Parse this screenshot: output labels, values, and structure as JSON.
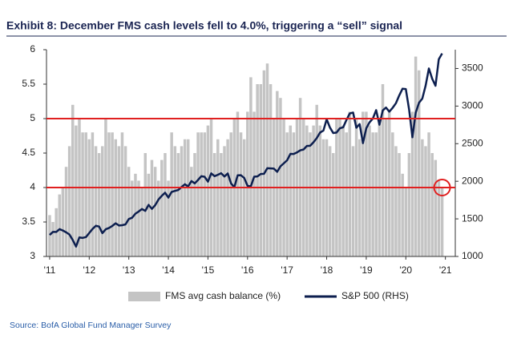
{
  "chart_data": {
    "type": "bar_line",
    "title": "Exhibit 8: December FMS cash levels fell to 4.0%, triggering a “sell” signal",
    "source": "Source: BofA Global Fund Manager Survey",
    "x": [
      2011,
      2011.083,
      2011.167,
      2011.25,
      2011.333,
      2011.417,
      2011.5,
      2011.583,
      2011.667,
      2011.75,
      2011.833,
      2011.917,
      2012,
      2012.083,
      2012.167,
      2012.25,
      2012.333,
      2012.417,
      2012.5,
      2012.583,
      2012.667,
      2012.75,
      2012.833,
      2012.917,
      2013,
      2013.083,
      2013.167,
      2013.25,
      2013.333,
      2013.417,
      2013.5,
      2013.583,
      2013.667,
      2013.75,
      2013.833,
      2013.917,
      2014,
      2014.083,
      2014.167,
      2014.25,
      2014.333,
      2014.417,
      2014.5,
      2014.583,
      2014.667,
      2014.75,
      2014.833,
      2014.917,
      2015,
      2015.083,
      2015.167,
      2015.25,
      2015.333,
      2015.417,
      2015.5,
      2015.583,
      2015.667,
      2015.75,
      2015.833,
      2015.917,
      2016,
      2016.083,
      2016.167,
      2016.25,
      2016.333,
      2016.417,
      2016.5,
      2016.583,
      2016.667,
      2016.75,
      2016.833,
      2016.917,
      2017,
      2017.083,
      2017.167,
      2017.25,
      2017.333,
      2017.417,
      2017.5,
      2017.583,
      2017.667,
      2017.75,
      2017.833,
      2017.917,
      2018,
      2018.083,
      2018.167,
      2018.25,
      2018.333,
      2018.417,
      2018.5,
      2018.583,
      2018.667,
      2018.75,
      2018.833,
      2018.917,
      2019,
      2019.083,
      2019.167,
      2019.25,
      2019.333,
      2019.417,
      2019.5,
      2019.583,
      2019.667,
      2019.75,
      2019.833,
      2019.917,
      2020,
      2020.083,
      2020.167,
      2020.25,
      2020.333,
      2020.417,
      2020.5,
      2020.583,
      2020.667,
      2020.75,
      2020.833,
      2020.917
    ],
    "series": [
      {
        "name": "FMS avg cash balance (%)",
        "type": "bar",
        "color": "#c4c4c4",
        "values": [
          3.6,
          3.5,
          3.7,
          3.9,
          4.0,
          4.3,
          4.6,
          5.2,
          4.9,
          5.0,
          4.8,
          4.8,
          4.7,
          4.8,
          4.6,
          4.5,
          4.6,
          5.0,
          4.8,
          4.8,
          4.7,
          4.6,
          4.8,
          4.6,
          4.3,
          4.1,
          4.2,
          4.1,
          4.0,
          4.5,
          4.2,
          4.4,
          4.3,
          4.1,
          4.4,
          4.5,
          4.1,
          4.8,
          4.6,
          4.5,
          4.6,
          4.7,
          4.7,
          4.3,
          4.5,
          4.8,
          4.8,
          4.8,
          4.9,
          5.0,
          4.5,
          4.7,
          4.5,
          4.6,
          4.7,
          4.8,
          5.0,
          5.1,
          4.8,
          4.7,
          5.1,
          5.6,
          5.1,
          5.5,
          5.5,
          5.7,
          5.8,
          5.5,
          5.0,
          5.4,
          5.3,
          5.0,
          4.8,
          4.9,
          4.8,
          5.0,
          5.3,
          5.0,
          4.9,
          4.8,
          4.9,
          5.2,
          4.9,
          4.7,
          4.7,
          4.6,
          4.5,
          5.0,
          5.0,
          4.9,
          4.8,
          5.1,
          4.6,
          5.0,
          4.7,
          5.1,
          5.1,
          4.9,
          4.8,
          4.8,
          5.0,
          5.5,
          5.0,
          5.1,
          4.8,
          4.6,
          4.5,
          4.2,
          4.0,
          4.5,
          5.1,
          5.9,
          5.7,
          4.7,
          4.6,
          4.8,
          4.5,
          4.4,
          4.1,
          4.0
        ]
      },
      {
        "name": "S&P 500 (RHS)",
        "type": "line",
        "axis": "y2",
        "color": "#0d1f4f",
        "values": [
          1286,
          1327,
          1326,
          1363,
          1345,
          1321,
          1292,
          1219,
          1131,
          1253,
          1247,
          1258,
          1312,
          1366,
          1408,
          1398,
          1310,
          1362,
          1379,
          1406,
          1441,
          1412,
          1416,
          1426,
          1498,
          1515,
          1569,
          1598,
          1631,
          1606,
          1686,
          1633,
          1682,
          1757,
          1806,
          1848,
          1783,
          1859,
          1872,
          1884,
          1924,
          1960,
          1931,
          2003,
          1972,
          2018,
          2068,
          2059,
          1995,
          2105,
          2068,
          2086,
          2107,
          2063,
          2104,
          1972,
          1920,
          2079,
          2080,
          2044,
          1940,
          1932,
          2060,
          2065,
          2097,
          2099,
          2174,
          2171,
          2168,
          2126,
          2199,
          2239,
          2279,
          2364,
          2363,
          2384,
          2412,
          2423,
          2470,
          2472,
          2519,
          2575,
          2648,
          2674,
          2824,
          2714,
          2641,
          2648,
          2705,
          2718,
          2816,
          2902,
          2914,
          2712,
          2760,
          2507,
          2704,
          2784,
          2834,
          2946,
          2752,
          2942,
          2980,
          2926,
          2977,
          3038,
          3141,
          3231,
          3226,
          2954,
          2585,
          2912,
          3044,
          3100,
          3271,
          3500,
          3363,
          3270,
          3622,
          3700
        ]
      }
    ],
    "hlines": [
      5,
      4
    ],
    "hline_color": "#e02020",
    "xlim": [
      2010.92,
      2021.25
    ],
    "xticks": [
      {
        "value": 2011,
        "label": "'11"
      },
      {
        "value": 2012,
        "label": "'12"
      },
      {
        "value": 2013,
        "label": "'13"
      },
      {
        "value": 2014,
        "label": "'14"
      },
      {
        "value": 2015,
        "label": "'15"
      },
      {
        "value": 2016,
        "label": "'16"
      },
      {
        "value": 2017,
        "label": "'17"
      },
      {
        "value": 2018,
        "label": "'18"
      },
      {
        "value": 2019,
        "label": "'19"
      },
      {
        "value": 2020,
        "label": "'20"
      },
      {
        "value": 2021,
        "label": "'21"
      }
    ],
    "ylim": [
      3,
      6
    ],
    "yticks": [
      3,
      3.5,
      4,
      4.5,
      5,
      5.5,
      6
    ],
    "y2lim": [
      1000,
      3750
    ],
    "y2ticks": [
      1000,
      1500,
      2000,
      2500,
      3000,
      3500
    ]
  }
}
